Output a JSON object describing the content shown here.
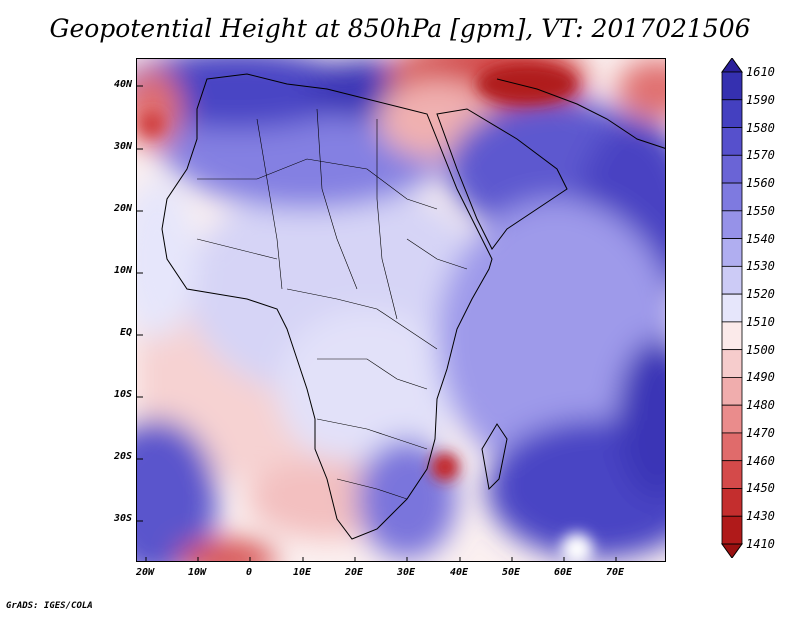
{
  "title": "Geopotential Height at 850hPa [gpm], VT: 2017021506",
  "credit": "GrADS: IGES/COLA",
  "map": {
    "region": "Africa and western Indian Ocean",
    "lat_ticks": [
      "40N",
      "30N",
      "20N",
      "10N",
      "EQ",
      "10S",
      "20S",
      "30S"
    ],
    "lon_ticks": [
      "20W",
      "10W",
      "0",
      "10E",
      "20E",
      "30E",
      "40E",
      "50E",
      "60E",
      "70E"
    ],
    "field": "geopotential height",
    "level": "850hPa",
    "units": "gpm"
  },
  "colorbar": {
    "labels": [
      "1610",
      "1590",
      "1580",
      "1570",
      "1560",
      "1550",
      "1540",
      "1530",
      "1520",
      "1510",
      "1500",
      "1490",
      "1480",
      "1470",
      "1460",
      "1450",
      "1430",
      "1410"
    ],
    "colors": [
      "#2a1f9a",
      "#3530b0",
      "#4440c0",
      "#5650cc",
      "#6a64d6",
      "#7e7ae0",
      "#9692e8",
      "#b0aef0",
      "#cccbf6",
      "#e6e6fb",
      "#fbeaea",
      "#f6cccc",
      "#f0adad",
      "#ea8c8c",
      "#e06b6b",
      "#d44a4a",
      "#c42e2e",
      "#b01a1a",
      "#9a1010"
    ],
    "extends": "both"
  }
}
